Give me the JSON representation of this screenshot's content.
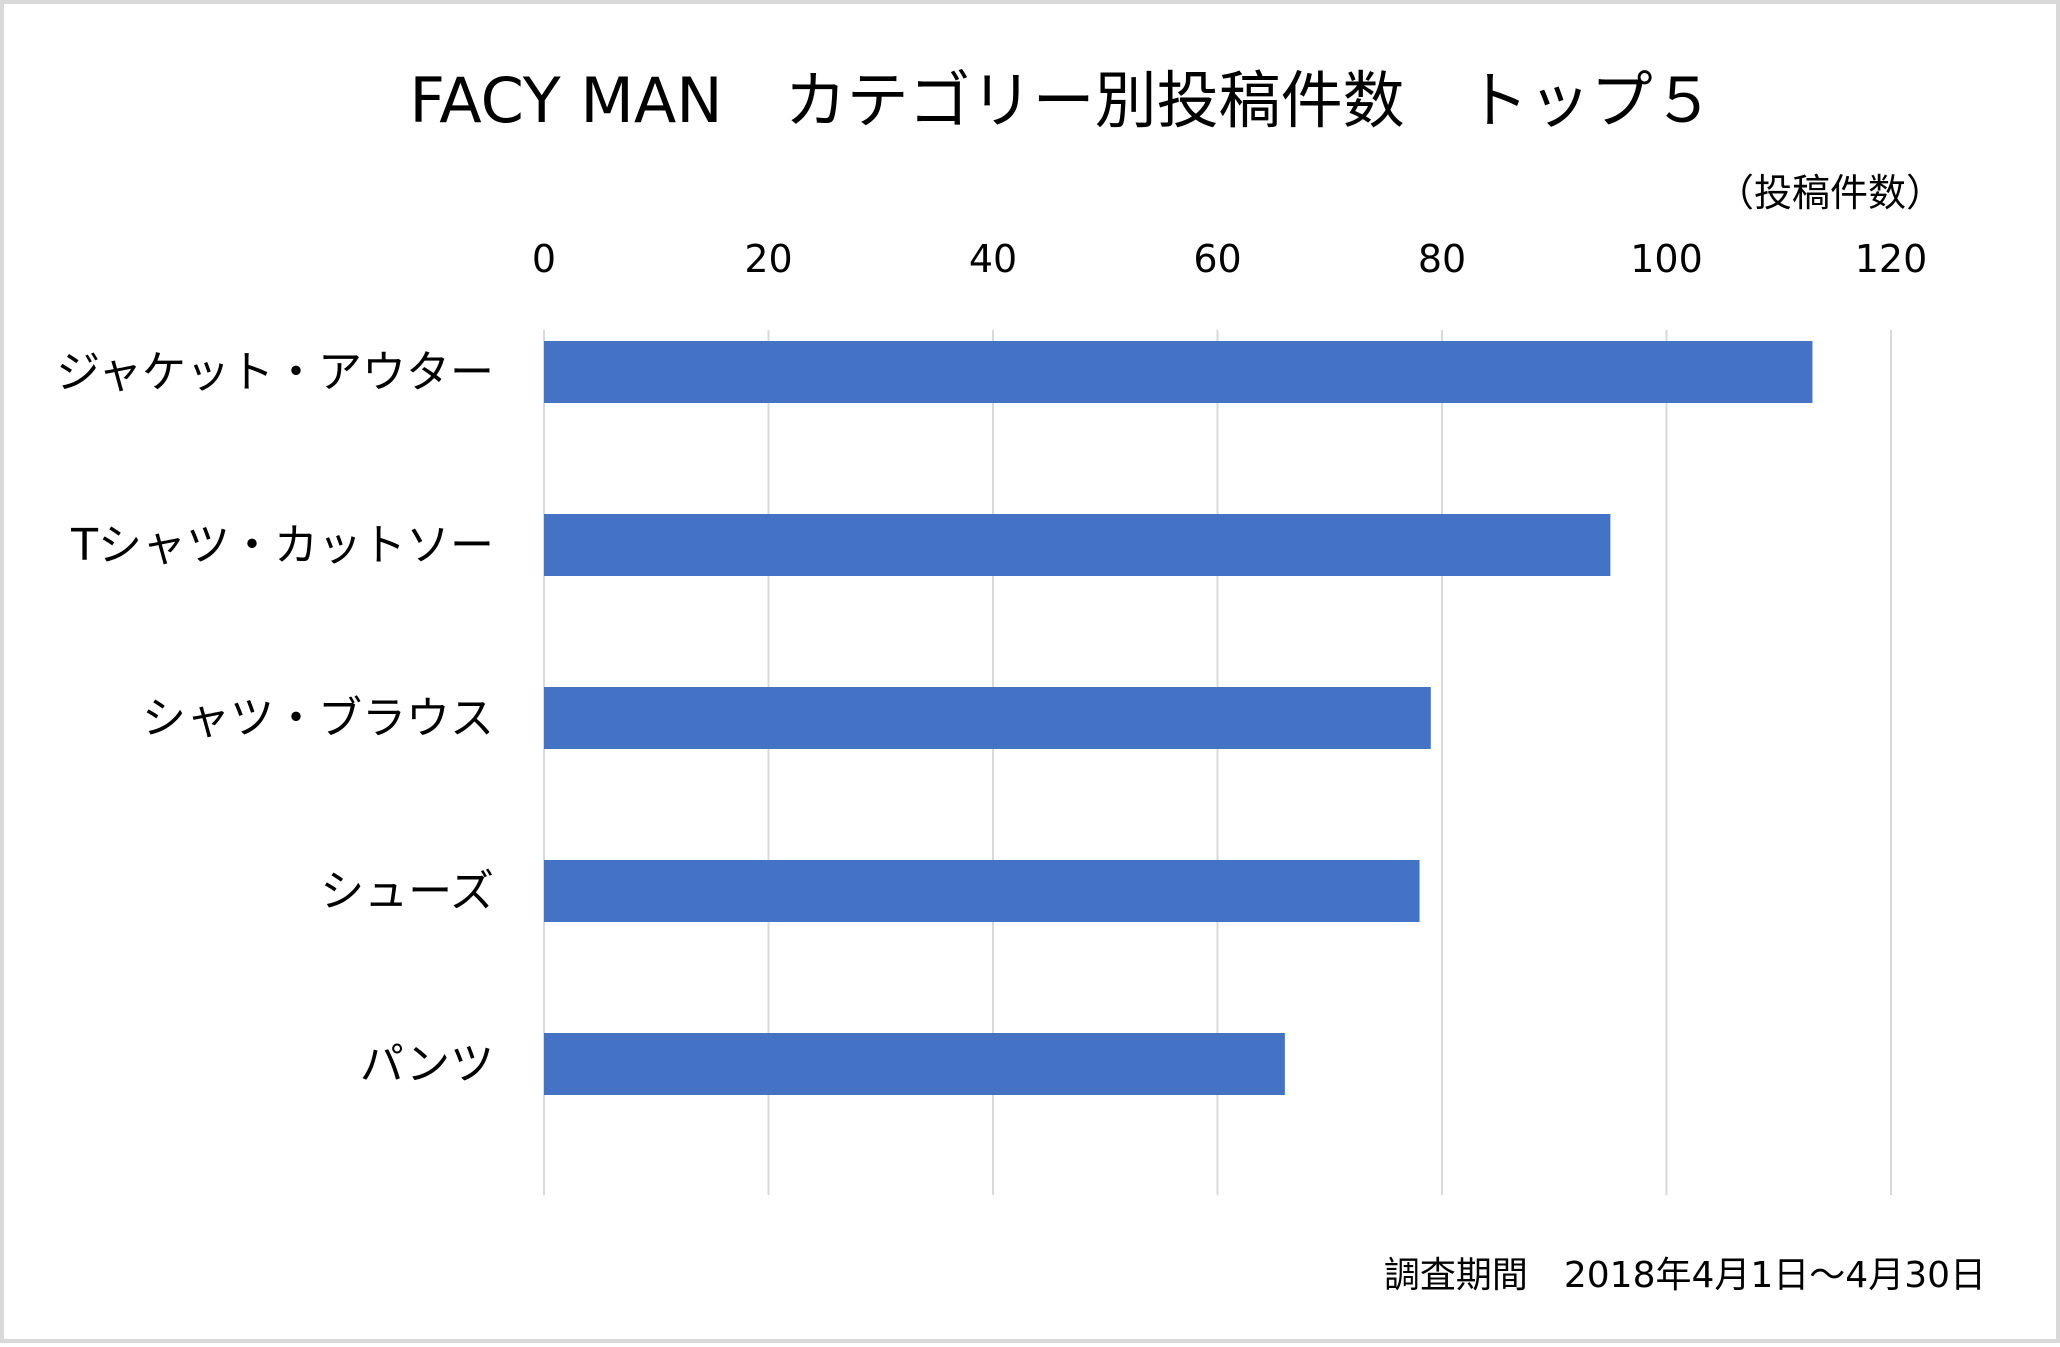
{
  "chart_data": {
    "type": "bar",
    "orientation": "horizontal",
    "title": "FACY MAN　カテゴリー別投稿件数　トップ５",
    "unit_label": "（投稿件数）",
    "categories": [
      "ジャケット・アウター",
      "Tシャツ・カットソー",
      "シャツ・ブラウス",
      "シューズ",
      "パンツ"
    ],
    "values": [
      113,
      95,
      79,
      78,
      66
    ],
    "xlim": [
      0,
      120
    ],
    "ticks": [
      0,
      20,
      40,
      60,
      80,
      100,
      120
    ],
    "tick_labels": [
      "0",
      "20",
      "40",
      "60",
      "80",
      "100",
      "120"
    ],
    "grid": true,
    "axis_position": "top",
    "bar_color": "#4472c4",
    "note": "調査期間　2018年4月1日～4月30日"
  }
}
